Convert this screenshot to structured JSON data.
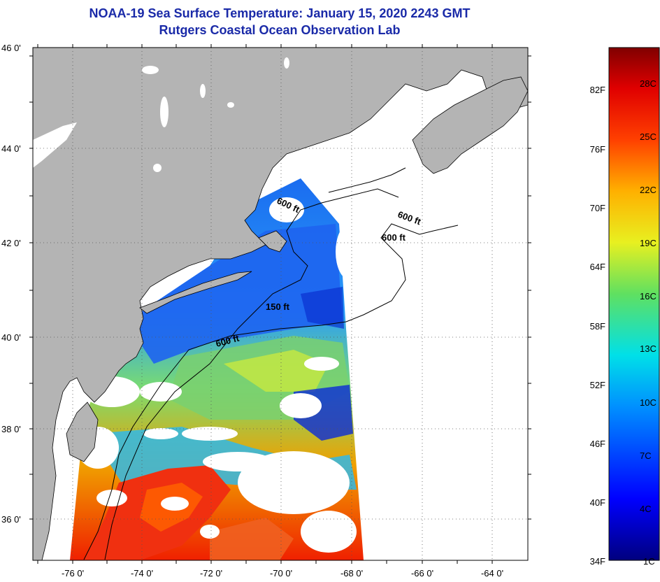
{
  "header": {
    "title": "NOAA-19 Sea Surface Temperature:  January 15, 2020 2243 GMT",
    "subtitle": "Rutgers Coastal Ocean Observation Lab"
  },
  "map": {
    "lat_labels": [
      "46 0'",
      "44 0'",
      "42 0'",
      "40 0'",
      "38 0'",
      "36 0'"
    ],
    "lon_labels": [
      "-76 0'",
      "-74 0'",
      "-72 0'",
      "-70 0'",
      "-68 0'",
      "-66 0'",
      "-64 0'"
    ],
    "lat_range": [
      35,
      46
    ],
    "lon_range": [
      -77,
      -63
    ],
    "isobaths": [
      "600 ft",
      "600 ft",
      "600 ft",
      "150 ft",
      "600 ft"
    ],
    "colors": {
      "land": "#b4b4b4",
      "cloud": "#ffffff",
      "frame": "#000000"
    }
  },
  "colorbar": {
    "fahrenheit": [
      "82F",
      "76F",
      "70F",
      "64F",
      "58F",
      "52F",
      "46F",
      "40F",
      "34F"
    ],
    "celsius": [
      "28C",
      "25C",
      "22C",
      "19C",
      "16C",
      "13C",
      "10C",
      "7C",
      "4C",
      "1C"
    ]
  }
}
